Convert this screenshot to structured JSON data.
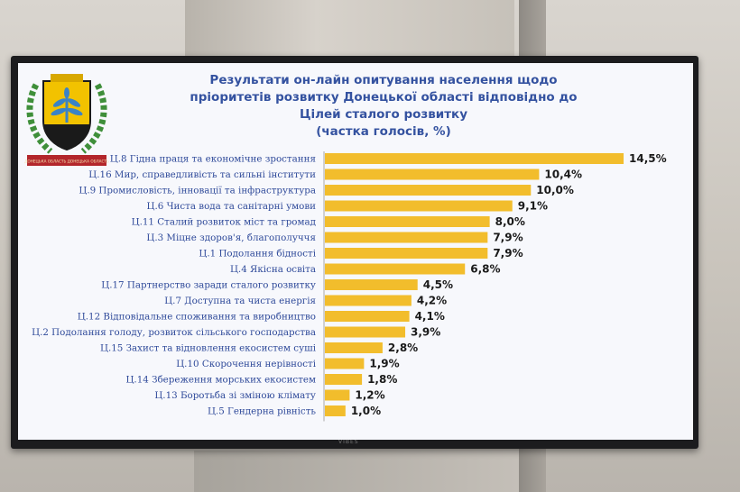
{
  "screen": {
    "brand": "VIBES",
    "emblem": {
      "ribbon_text": "ДОНЕЦЬКА ОБЛАСТЬ ДОНЕЦЬКА ОБЛАСТЬ",
      "colors": {
        "shield": "#1a1a1a",
        "field": "#f2c200",
        "plant": "#3a83c6",
        "wreath": "#3f8f3a",
        "ribbon": "#b3262b"
      }
    },
    "title_lines": [
      "Результати он-лайн опитування населення щодо",
      "пріоритетів розвитку Донецької області відповідно до",
      "Цілей сталого розвитку",
      "(частка голосів, %)"
    ]
  },
  "chart_data": {
    "type": "bar",
    "orientation": "horizontal",
    "categories": [
      "Ц.8 Гідна праця та економічне зростання",
      "Ц.16 Мир, справедливість та сильні інститути",
      "Ц.9 Промисловість, інновації та інфраструктура",
      "Ц.6 Чиста вода та санітарні умови",
      "Ц.11 Сталий розвиток міст та громад",
      "Ц.3 Міцне здоров'я, благополуччя",
      "Ц.1 Подолання бідності",
      "Ц.4 Якісна освіта",
      "Ц.17  Партнерство заради сталого розвитку",
      "Ц.7 Доступна та чиста енергія",
      "Ц.12 Відповідальне споживання та виробництво",
      "Ц.2 Подолання голоду, розвиток сільського господарства",
      "Ц.15 Захист та відновлення екосистем суші",
      "Ц.10 Скорочення нерівності",
      "Ц.14 Збереження морських екосистем",
      "Ц.13 Боротьба зі зміною клімату",
      "Ц.5 Гендерна рівність"
    ],
    "values": [
      14.5,
      10.4,
      10.0,
      9.1,
      8.0,
      7.9,
      7.9,
      6.8,
      4.5,
      4.2,
      4.1,
      3.9,
      2.8,
      1.9,
      1.8,
      1.2,
      1.0
    ],
    "value_labels": [
      "14,5%",
      "10,4%",
      "10,0%",
      "9,1%",
      "8,0%",
      "7,9%",
      "7,9%",
      "6,8%",
      "4,5%",
      "4,2%",
      "4,1%",
      "3,9%",
      "2,8%",
      "1,9%",
      "1,8%",
      "1,2%",
      "1,0%"
    ],
    "xlim": [
      0,
      14.5
    ],
    "bar_color": "#f2bd2c",
    "axis_color": "#a9a9a9",
    "grid": false,
    "legend": "none"
  }
}
